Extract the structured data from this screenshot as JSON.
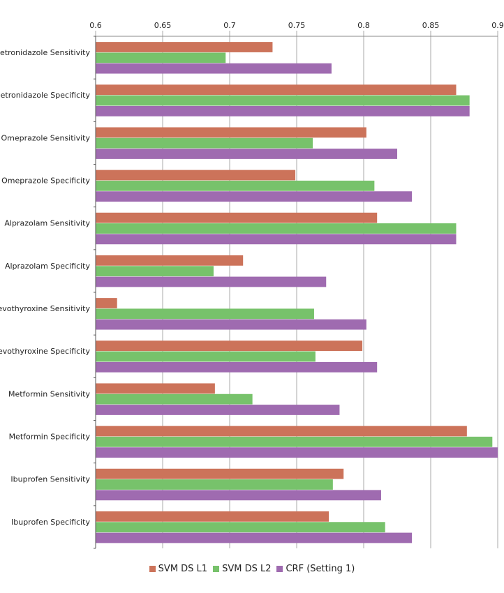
{
  "chart_data": {
    "type": "bar",
    "orientation": "horizontal",
    "categories": [
      "Metronidazole Sensitivity",
      "Metronidazole Specificity",
      "Omeprazole Sensitivity",
      "Omeprazole Specificity",
      "Alprazolam Sensitivity",
      "Alprazolam Specificity",
      "Levothyroxine Sensitivity",
      "Levothyroxine Specificity",
      "Metformin Sensitivity",
      "Metformin Specificity",
      "Ibuprofen Sensitivity",
      "Ibuprofen Specificity"
    ],
    "series": [
      {
        "name": "SVM DS L1",
        "color": "#cc735a",
        "values": [
          0.732,
          0.869,
          0.802,
          0.749,
          0.81,
          0.71,
          0.616,
          0.799,
          0.689,
          0.877,
          0.785,
          0.774
        ]
      },
      {
        "name": "SVM DS L2",
        "color": "#77c26b",
        "values": [
          0.697,
          0.879,
          0.762,
          0.808,
          0.869,
          0.688,
          0.763,
          0.764,
          0.717,
          0.896,
          0.777,
          0.816
        ]
      },
      {
        "name": "CRF (Setting 1)",
        "color": "#9f6bb0",
        "values": [
          0.776,
          0.879,
          0.825,
          0.836,
          0.869,
          0.772,
          0.802,
          0.81,
          0.782,
          0.9,
          0.813,
          0.836
        ]
      }
    ],
    "xlim": [
      0.6,
      0.9
    ],
    "xticks": [
      "0.6",
      "0.65",
      "0.7",
      "0.75",
      "0.8",
      "0.85",
      "0.9"
    ],
    "title": "",
    "xlabel": "",
    "ylabel": "",
    "grid": true,
    "legend_position": "bottom"
  }
}
